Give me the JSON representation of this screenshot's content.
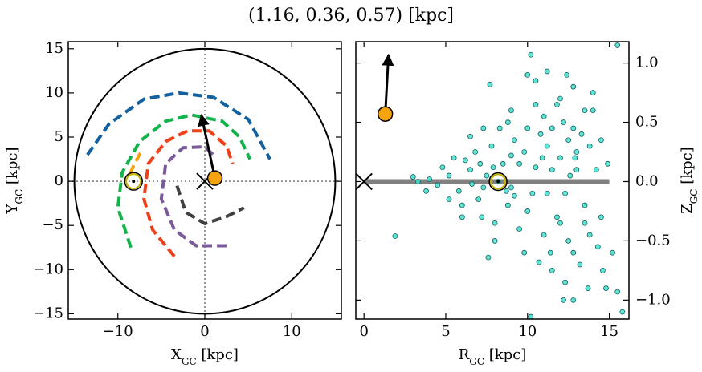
{
  "title": "(1.16, 0.36, 0.57) [kpc]",
  "chart_data": [
    {
      "type": "line",
      "xlabel": [
        "X",
        "GC",
        " [kpc]"
      ],
      "ylabel": [
        "Y",
        "GC",
        " [kpc]"
      ],
      "xlim": [
        -15.7,
        15.7
      ],
      "ylim": [
        -15.6,
        15.8
      ],
      "xticks": [
        {
          "value": -10,
          "label": "−10"
        },
        0,
        10
      ],
      "yticks": [
        {
          "value": -15,
          "label": "−15"
        },
        {
          "value": -10,
          "label": "−10"
        },
        {
          "value": -5,
          "label": "−5"
        },
        0,
        5,
        10,
        15
      ],
      "yaxis_side": "left",
      "hlines": [
        0
      ],
      "vlines": [
        0
      ],
      "circle": {
        "x": 0,
        "y": 0,
        "r": 15
      },
      "series": [
        {
          "color": "#1461a0",
          "linestyle": "dashed",
          "x": [
            -13.5,
            -11,
            -7,
            -3,
            1,
            5,
            7.5
          ],
          "y": [
            3,
            6.5,
            9.3,
            10,
            9.5,
            7,
            2.5
          ]
        },
        {
          "color": "#11b34a",
          "linestyle": "dashed",
          "x": [
            -8.5,
            -10,
            -9.5,
            -7.5,
            -4.5,
            -1.5,
            2,
            4,
            5.2
          ],
          "y": [
            -7.5,
            -3,
            1,
            4.5,
            6.8,
            7.5,
            6.8,
            5,
            2.5
          ]
        },
        {
          "color": "#f5a10a",
          "linestyle": "dashed",
          "x": [
            -8.6,
            -8.1,
            -7.4
          ],
          "y": [
            0.8,
            2,
            3.2
          ]
        },
        {
          "color": "#f0401a",
          "linestyle": "dashed",
          "x": [
            -3.5,
            -6,
            -7,
            -6.5,
            -4.5,
            -2,
            0.5,
            2.5,
            3.2
          ],
          "y": [
            -8.5,
            -5.5,
            -2,
            2,
            4.5,
            5.7,
            5.7,
            4,
            2
          ]
        },
        {
          "color": "#7a5a9a",
          "linestyle": "dashed",
          "x": [
            2.5,
            -1,
            -3.5,
            -5,
            -4.5,
            -2.5,
            0,
            1.2
          ],
          "y": [
            -7.3,
            -7.3,
            -5.5,
            -2,
            2,
            3.8,
            3.9,
            2.8
          ]
        },
        {
          "color": "#404040",
          "linestyle": "dashed",
          "x": [
            -3.2,
            -2.2,
            0,
            2.5,
            4.5
          ],
          "y": [
            -0.5,
            -3.5,
            -4.8,
            -4,
            -3
          ]
        }
      ],
      "arrow": {
        "x": [
          1.16,
          -0.4
        ],
        "y": [
          0.36,
          7.5
        ]
      },
      "markers": [
        {
          "shape": "x",
          "x": 0,
          "y": 0
        },
        {
          "shape": "sun",
          "x": -8.2,
          "y": 0
        },
        {
          "shape": "dot",
          "color": "#f5a30f",
          "x": 1.16,
          "y": 0.36
        }
      ]
    },
    {
      "type": "scatter",
      "xlabel": [
        "R",
        "GC",
        " [kpc]"
      ],
      "ylabel": [
        "Z",
        "GC",
        " [kpc]"
      ],
      "xlim": [
        -0.5,
        16.2
      ],
      "ylim": [
        -1.16,
        1.18
      ],
      "xticks": [
        0,
        5,
        10,
        15
      ],
      "yticks": [
        {
          "value": -1,
          "label": "−1.0"
        },
        {
          "value": -0.5,
          "label": "−0.5"
        },
        {
          "value": 0,
          "label": "0.0"
        },
        0.5,
        {
          "value": 1,
          "label": "1.0"
        }
      ],
      "yaxis_side": "right",
      "disk": {
        "color": "#808080",
        "x": [
          0,
          15
        ],
        "y": [
          0,
          0
        ]
      },
      "series": [
        {
          "color": "#40e0d0",
          "x": [
            8.2,
            7.5,
            9.0,
            6.5,
            10.5,
            11.2,
            5.8,
            12.0,
            9.8,
            8.8,
            7.0,
            6.2,
            10.0,
            11.8,
            12.5,
            13.0,
            13.5,
            5.2,
            4.5,
            4.0,
            3.3,
            5.5,
            6.8,
            7.8,
            9.2,
            10.8,
            11.5,
            12.2,
            12.8,
            13.3,
            11.0,
            12.0,
            10.5,
            11.8,
            13.5,
            14.0,
            13.0,
            14.2,
            14.5,
            13.8,
            12.5,
            11.0,
            9.5,
            8.0,
            7.2,
            6.0,
            12.8,
            13.2,
            12.3,
            12.8,
            13.7,
            14.8,
            15.5,
            15.8,
            10.2,
            12.2,
            11.5,
            10.7,
            7.6,
            1.9,
            10.2,
            15.5,
            11.2,
            10.5,
            7.7,
            10.0,
            12.4,
            9.0,
            8.3,
            7.3,
            6.5,
            9.5,
            10.3,
            9.2,
            8.5,
            7.3,
            6.6,
            11.5,
            12.3,
            13.8,
            14.3,
            15.2,
            14.6,
            14.0,
            12.8,
            11.2,
            10.0,
            8.8,
            8.0,
            9.8,
            11.4,
            12.0,
            13.5,
            6.0,
            5.2,
            4.8,
            3.8,
            3.0,
            14.5,
            14.9,
            12.6,
            12.9,
            10.9,
            9.0,
            8.7,
            7.9,
            7.1
          ],
          "y": [
            0.0,
            0.05,
            -0.05,
            0.1,
            0.12,
            -0.1,
            -0.08,
            0.2,
            0.25,
            -0.2,
            -0.15,
            0.18,
            -0.25,
            -0.3,
            0.35,
            0.1,
            -0.2,
            0.05,
            -0.03,
            0.02,
            0.0,
            0.2,
            0.25,
            0.3,
            0.35,
            0.4,
            0.45,
            0.5,
            0.45,
            0.4,
            0.55,
            0.7,
            0.65,
            0.65,
            0.6,
            0.6,
            0.25,
            0.1,
            -0.3,
            -0.45,
            -0.5,
            -0.45,
            -0.4,
            -0.35,
            -0.3,
            -0.2,
            -0.6,
            -0.7,
            -0.85,
            -1.0,
            -0.9,
            -0.9,
            -0.93,
            -1.1,
            -1.14,
            -1.0,
            -0.75,
            -0.68,
            -0.64,
            -0.46,
            1.07,
            1.15,
            0.93,
            0.85,
            0.82,
            0.9,
            0.9,
            0.6,
            0.45,
            0.45,
            0.38,
            0.15,
            -0.1,
            -0.12,
            0.15,
            -0.05,
            -0.02,
            0.1,
            -0.1,
            0.3,
            -0.55,
            -0.6,
            -0.75,
            0.75,
            0.8,
            0.3,
            0.45,
            0.5,
            -0.5,
            -0.6,
            -0.6,
            -0.35,
            -0.35,
            -0.3,
            -0.15,
            0.12,
            -0.08,
            0.04,
            0.35,
            0.15,
            0.05,
            0.2,
            0.2,
            0.22,
            -0.08,
            0.12,
            0.15
          ]
        }
      ],
      "arrow": {
        "x": [
          1.3,
          1.5
        ],
        "y": [
          0.57,
          1.07
        ]
      },
      "markers": [
        {
          "shape": "x",
          "x": 0,
          "y": 0
        },
        {
          "shape": "sun",
          "x": 8.2,
          "y": 0
        },
        {
          "shape": "dot",
          "color": "#f5a30f",
          "x": 1.3,
          "y": 0.57
        }
      ]
    }
  ]
}
